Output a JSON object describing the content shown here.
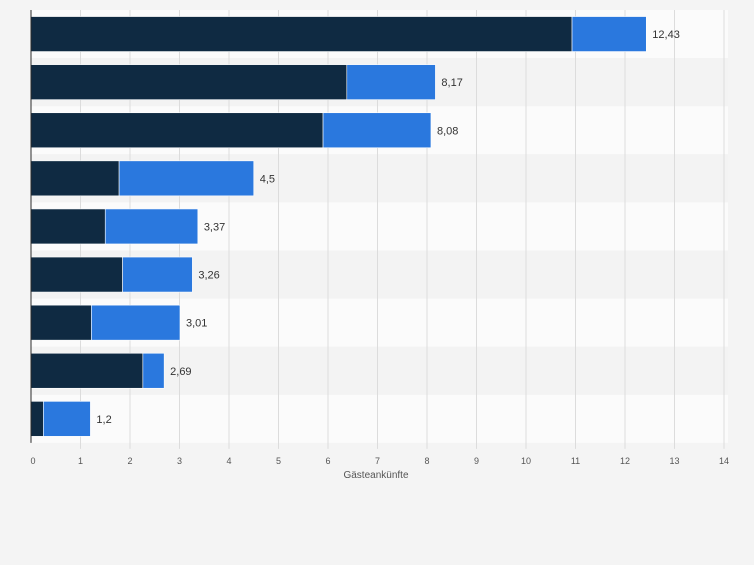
{
  "chart_data": {
    "type": "bar",
    "orientation": "horizontal",
    "stacked": true,
    "xlabel": "Gästeankünfte",
    "xlim": [
      0,
      14
    ],
    "x_ticks": [
      "0",
      "1",
      "2",
      "3",
      "4",
      "5",
      "6",
      "7",
      "8",
      "9",
      "10",
      "11",
      "12",
      "13",
      "14"
    ],
    "grid": true,
    "category_labels_visible": false,
    "totals": [
      "12,43",
      "8,17",
      "8,08",
      "4,5",
      "3,37",
      "3,26",
      "3,01",
      "2,69",
      "1,2"
    ],
    "series": [
      {
        "color": "#0f2a42",
        "values": [
          10.93,
          6.38,
          5.9,
          1.78,
          1.5,
          1.85,
          1.22,
          2.26,
          0.25
        ]
      },
      {
        "color": "#2a78de",
        "values": [
          1.5,
          1.79,
          2.18,
          2.72,
          1.87,
          1.41,
          1.79,
          0.43,
          0.95
        ]
      }
    ],
    "colors": {
      "row_light": "#fbfbfb",
      "row_dark": "#f3f3f3",
      "grid": "#dcdcdc",
      "axis": "#2b2b2b",
      "text": "#333333",
      "tick_text": "#555555"
    }
  }
}
